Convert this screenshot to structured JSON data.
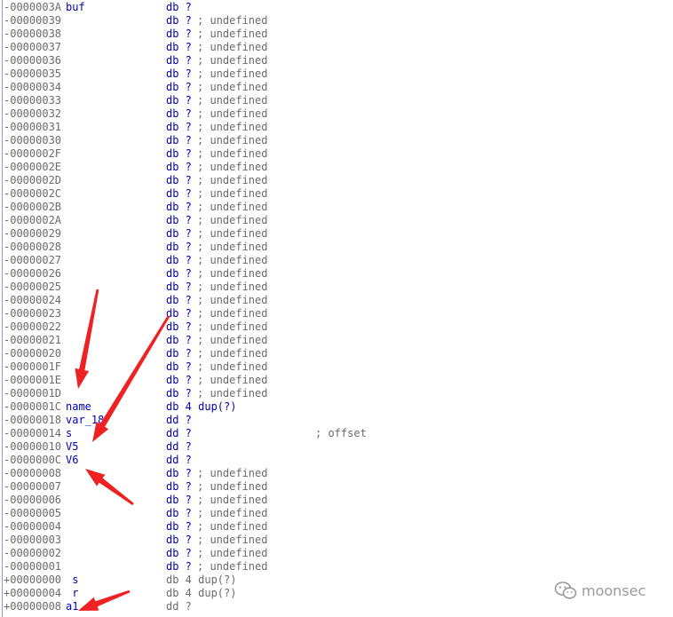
{
  "colors": {
    "offset": "#6b6b6b",
    "name": "#0000b8",
    "opcode": "#0000b8",
    "comment": "#6b6b6b",
    "arrow": "#ee2222",
    "gutter": "#7fa7c9"
  },
  "rows": [
    {
      "offset": "-0000003A",
      "name": "buf",
      "op": "db ?",
      "comment": ""
    },
    {
      "offset": "-00000039",
      "name": "",
      "op": "db ?",
      "comment": "; undefined"
    },
    {
      "offset": "-00000038",
      "name": "",
      "op": "db ?",
      "comment": "; undefined"
    },
    {
      "offset": "-00000037",
      "name": "",
      "op": "db ?",
      "comment": "; undefined"
    },
    {
      "offset": "-00000036",
      "name": "",
      "op": "db ?",
      "comment": "; undefined"
    },
    {
      "offset": "-00000035",
      "name": "",
      "op": "db ?",
      "comment": "; undefined"
    },
    {
      "offset": "-00000034",
      "name": "",
      "op": "db ?",
      "comment": "; undefined"
    },
    {
      "offset": "-00000033",
      "name": "",
      "op": "db ?",
      "comment": "; undefined"
    },
    {
      "offset": "-00000032",
      "name": "",
      "op": "db ?",
      "comment": "; undefined"
    },
    {
      "offset": "-00000031",
      "name": "",
      "op": "db ?",
      "comment": "; undefined"
    },
    {
      "offset": "-00000030",
      "name": "",
      "op": "db ?",
      "comment": "; undefined"
    },
    {
      "offset": "-0000002F",
      "name": "",
      "op": "db ?",
      "comment": "; undefined"
    },
    {
      "offset": "-0000002E",
      "name": "",
      "op": "db ?",
      "comment": "; undefined"
    },
    {
      "offset": "-0000002D",
      "name": "",
      "op": "db ?",
      "comment": "; undefined"
    },
    {
      "offset": "-0000002C",
      "name": "",
      "op": "db ?",
      "comment": "; undefined"
    },
    {
      "offset": "-0000002B",
      "name": "",
      "op": "db ?",
      "comment": "; undefined"
    },
    {
      "offset": "-0000002A",
      "name": "",
      "op": "db ?",
      "comment": "; undefined"
    },
    {
      "offset": "-00000029",
      "name": "",
      "op": "db ?",
      "comment": "; undefined"
    },
    {
      "offset": "-00000028",
      "name": "",
      "op": "db ?",
      "comment": "; undefined"
    },
    {
      "offset": "-00000027",
      "name": "",
      "op": "db ?",
      "comment": "; undefined"
    },
    {
      "offset": "-00000026",
      "name": "",
      "op": "db ?",
      "comment": "; undefined"
    },
    {
      "offset": "-00000025",
      "name": "",
      "op": "db ?",
      "comment": "; undefined"
    },
    {
      "offset": "-00000024",
      "name": "",
      "op": "db ?",
      "comment": "; undefined"
    },
    {
      "offset": "-00000023",
      "name": "",
      "op": "db ?",
      "comment": "; undefined"
    },
    {
      "offset": "-00000022",
      "name": "",
      "op": "db ?",
      "comment": "; undefined"
    },
    {
      "offset": "-00000021",
      "name": "",
      "op": "db ?",
      "comment": "; undefined"
    },
    {
      "offset": "-00000020",
      "name": "",
      "op": "db ?",
      "comment": "; undefined"
    },
    {
      "offset": "-0000001F",
      "name": "",
      "op": "db ?",
      "comment": "; undefined"
    },
    {
      "offset": "-0000001E",
      "name": "",
      "op": "db ?",
      "comment": "; undefined"
    },
    {
      "offset": "-0000001D",
      "name": "",
      "op": "db ?",
      "comment": "; undefined"
    },
    {
      "offset": "-0000001C",
      "name": "name",
      "op": "db 4 dup(?)",
      "comment": ""
    },
    {
      "offset": "-00000018",
      "name": "var_18",
      "op": "dd ?",
      "comment": ""
    },
    {
      "offset": "-00000014",
      "name": "s",
      "op": "dd ?",
      "comment": "; offset"
    },
    {
      "offset": "-00000010",
      "name": "V5",
      "op": "dd ?",
      "comment": ""
    },
    {
      "offset": "-0000000C",
      "name": "V6",
      "op": "dd ?",
      "comment": ""
    },
    {
      "offset": "-00000008",
      "name": "",
      "op": "db ?",
      "comment": "; undefined"
    },
    {
      "offset": "-00000007",
      "name": "",
      "op": "db ?",
      "comment": "; undefined"
    },
    {
      "offset": "-00000006",
      "name": "",
      "op": "db ?",
      "comment": "; undefined"
    },
    {
      "offset": "-00000005",
      "name": "",
      "op": "db ?",
      "comment": "; undefined"
    },
    {
      "offset": "-00000004",
      "name": "",
      "op": "db ?",
      "comment": "; undefined"
    },
    {
      "offset": "-00000003",
      "name": "",
      "op": "db ?",
      "comment": "; undefined"
    },
    {
      "offset": "-00000002",
      "name": "",
      "op": "db ?",
      "comment": "; undefined"
    },
    {
      "offset": "-00000001",
      "name": "",
      "op": "db ?",
      "comment": "; undefined"
    },
    {
      "offset": "+00000000",
      "name": " s",
      "op": "db 4 dup(?)",
      "comment": ""
    },
    {
      "offset": "+00000004",
      "name": " r",
      "op": "db 4 dup(?)",
      "comment": ""
    },
    {
      "offset": "+00000008",
      "name": "a1",
      "op": "dd ?",
      "comment": ""
    }
  ],
  "watermark": {
    "icon": "wechat-icon",
    "text": "moonsec"
  }
}
